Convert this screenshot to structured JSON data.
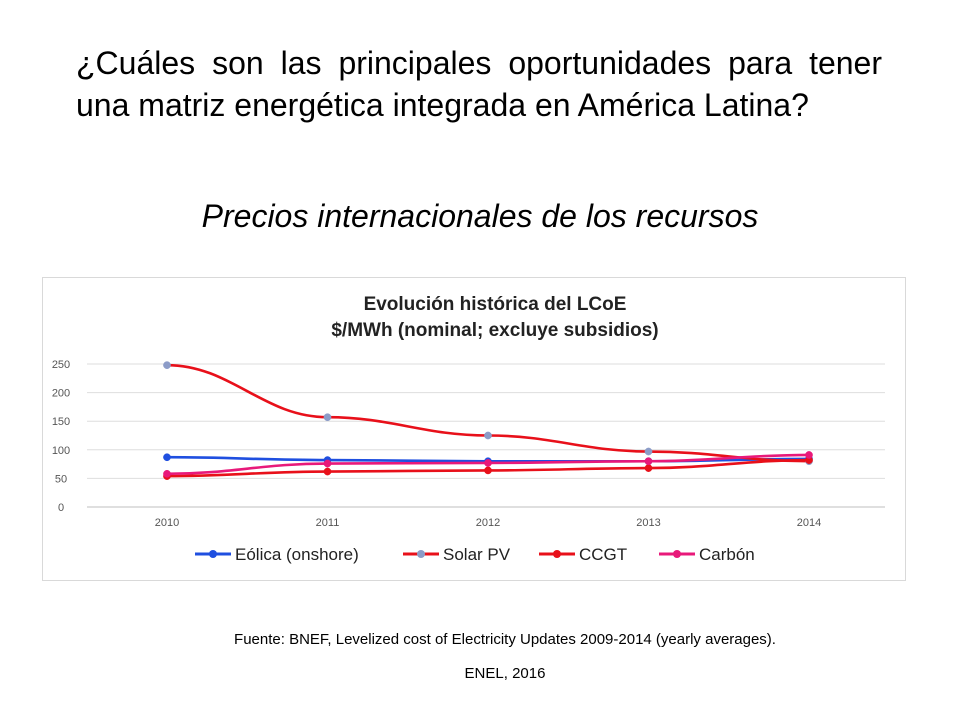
{
  "slide": {
    "question": "¿Cuáles son las principales oportunidades para tener una matriz energética integrada en América Latina?",
    "subtitle": "Precios internacionales de los recursos",
    "source": "Fuente: BNEF, Levelized cost of Electricity Updates 2009-2014 (yearly averages).",
    "author": "ENEL, 2016"
  },
  "chart_data": {
    "type": "line",
    "title": "Evolución histórica del LCoE",
    "subtitle": "$/MWh (nominal; excluye subsidios)",
    "x": [
      "2010",
      "2011",
      "2012",
      "2013",
      "2014"
    ],
    "ylim": [
      0,
      250
    ],
    "yticks": [
      0,
      50,
      100,
      150,
      200,
      250
    ],
    "grid": true,
    "legend_position": "bottom",
    "series": [
      {
        "name": "Eólica (onshore)",
        "color": "#1f4fe0",
        "marker_color": "#1f4fe0",
        "values": [
          87,
          82,
          80,
          80,
          84
        ]
      },
      {
        "name": "Solar PV",
        "color": "#e8101a",
        "marker_color": "#8c9cc8",
        "values": [
          248,
          157,
          125,
          97,
          80
        ]
      },
      {
        "name": "CCGT",
        "color": "#e8101a",
        "marker_color": "#e8101a",
        "values": [
          54,
          62,
          64,
          68,
          82
        ]
      },
      {
        "name": "Carbón",
        "color": "#e8197a",
        "marker_color": "#e8197a",
        "values": [
          58,
          76,
          77,
          80,
          91
        ]
      }
    ]
  }
}
